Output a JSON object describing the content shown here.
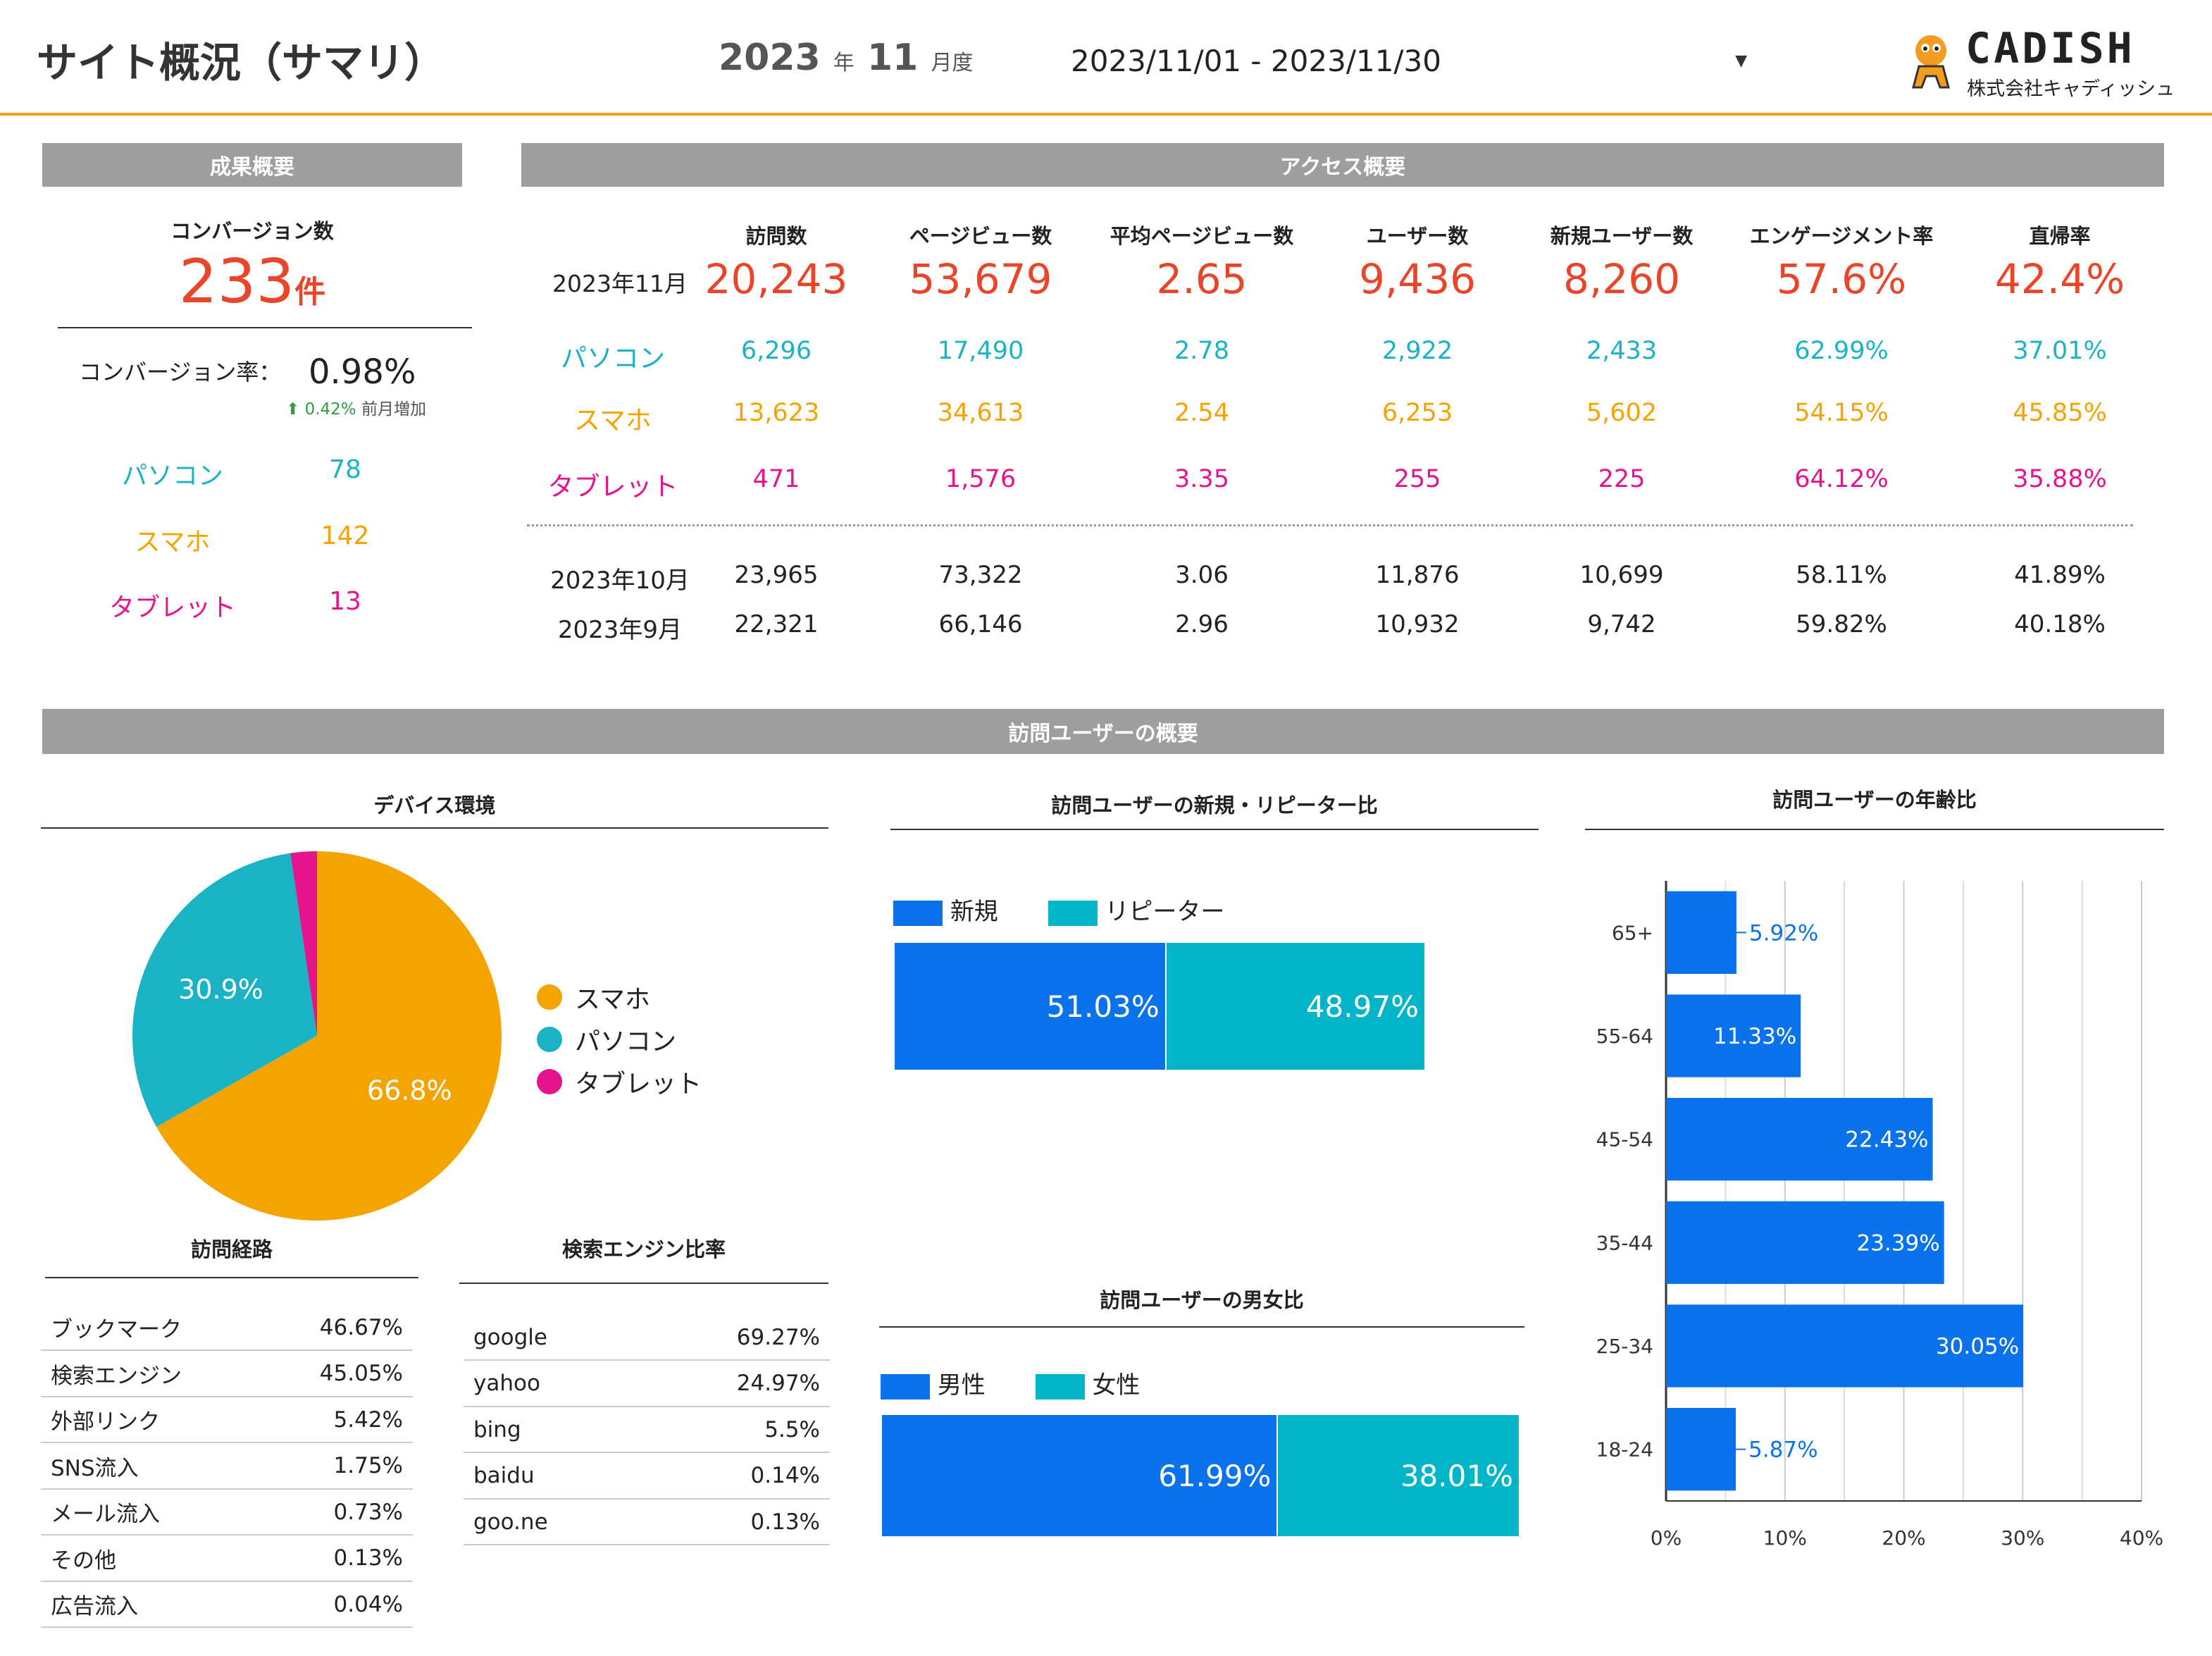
{
  "header": {
    "title": "サイト概況（サマリ）",
    "year": "2023",
    "year_unit": "年",
    "month": "11",
    "month_unit": "月度",
    "date_range": "2023/11/01 - 2023/11/30",
    "logo_name": "CADISH",
    "logo_company": "株式会社キャディッシュ"
  },
  "colors": {
    "accent": "#f39c1f",
    "red": "#e8462a",
    "pc": "#1ab3c6",
    "smartphone": "#f5a300",
    "tablet": "#e6148c",
    "blue": "#0a73eb",
    "teal": "#00b5c8"
  },
  "results": {
    "section_title": "成果概要",
    "cv_label": "コンバージョン数",
    "cv_value": "233",
    "cv_unit": "件",
    "cvr_label": "コンバージョン率：",
    "cvr_value": "0.98%",
    "cvr_change": "0.42%",
    "cvr_change_label": "前月増加",
    "devices": [
      {
        "label": "パソコン",
        "value": "78"
      },
      {
        "label": "スマホ",
        "value": "142"
      },
      {
        "label": "タブレット",
        "value": "13"
      }
    ]
  },
  "access": {
    "section_title": "アクセス概要",
    "columns": [
      "訪問数",
      "ページビュー数",
      "平均ページビュー数",
      "ユーザー数",
      "新規ユーザー数",
      "エンゲージメント率",
      "直帰率"
    ],
    "current": {
      "label": "2023年11月",
      "values": [
        "20,243",
        "53,679",
        "2.65",
        "9,436",
        "8,260",
        "57.6%",
        "42.4%"
      ]
    },
    "devices": [
      {
        "label": "パソコン",
        "values": [
          "6,296",
          "17,490",
          "2.78",
          "2,922",
          "2,433",
          "62.99%",
          "37.01%"
        ]
      },
      {
        "label": "スマホ",
        "values": [
          "13,623",
          "34,613",
          "2.54",
          "6,253",
          "5,602",
          "54.15%",
          "45.85%"
        ]
      },
      {
        "label": "タブレット",
        "values": [
          "471",
          "1,576",
          "3.35",
          "255",
          "225",
          "64.12%",
          "35.88%"
        ]
      }
    ],
    "previous": [
      {
        "label": "2023年10月",
        "values": [
          "23,965",
          "73,322",
          "3.06",
          "11,876",
          "10,699",
          "58.11%",
          "41.89%"
        ]
      },
      {
        "label": "2023年9月",
        "values": [
          "22,321",
          "66,146",
          "2.96",
          "10,932",
          "9,742",
          "59.82%",
          "40.18%"
        ]
      }
    ]
  },
  "visitors": {
    "section_title": "訪問ユーザーの概要",
    "device_title": "デバイス環境",
    "newrep_title": "訪問ユーザーの新規・リピーター比",
    "gender_title": "訪問ユーザーの男女比",
    "age_title": "訪問ユーザーの年齢比",
    "route_title": "訪問経路",
    "engine_title": "検索エンジン比率",
    "routes": [
      {
        "name": "ブックマーク",
        "value": "46.67%"
      },
      {
        "name": "検索エンジン",
        "value": "45.05%"
      },
      {
        "name": "外部リンク",
        "value": "5.42%"
      },
      {
        "name": "SNS流入",
        "value": "1.75%"
      },
      {
        "name": "メール流入",
        "value": "0.73%"
      },
      {
        "name": "その他",
        "value": "0.13%"
      },
      {
        "name": "広告流入",
        "value": "0.04%"
      }
    ],
    "engines": [
      {
        "name": "google",
        "value": "69.27%"
      },
      {
        "name": "yahoo",
        "value": "24.97%"
      },
      {
        "name": "bing",
        "value": "5.5%"
      },
      {
        "name": "baidu",
        "value": "0.14%"
      },
      {
        "name": "goo.ne",
        "value": "0.13%"
      }
    ]
  },
  "chart_data": [
    {
      "type": "pie",
      "title": "デバイス環境",
      "slices": [
        {
          "name": "スマホ",
          "value": 66.8,
          "label": "66.8%"
        },
        {
          "name": "パソコン",
          "value": 30.9,
          "label": "30.9%"
        },
        {
          "name": "タブレット",
          "value": 2.3,
          "label": ""
        }
      ]
    },
    {
      "type": "bar",
      "stacked": true,
      "title": "訪問ユーザーの新規・リピーター比",
      "series": [
        {
          "name": "新規",
          "values": [
            51.03
          ],
          "label": "51.03%"
        },
        {
          "name": "リピーター",
          "values": [
            48.97
          ],
          "label": "48.97%"
        }
      ]
    },
    {
      "type": "bar",
      "stacked": true,
      "title": "訪問ユーザーの男女比",
      "series": [
        {
          "name": "男性",
          "values": [
            61.99
          ],
          "label": "61.99%"
        },
        {
          "name": "女性",
          "values": [
            38.01
          ],
          "label": "38.01%"
        }
      ]
    },
    {
      "type": "bar",
      "orientation": "horizontal",
      "title": "訪問ユーザーの年齢比",
      "categories": [
        "65+",
        "55-64",
        "45-54",
        "35-44",
        "25-34",
        "18-24"
      ],
      "values": [
        5.92,
        11.33,
        22.43,
        23.39,
        30.05,
        5.87
      ],
      "labels": [
        "5.92%",
        "11.33%",
        "22.43%",
        "23.39%",
        "30.05%",
        "5.87%"
      ],
      "xlim": [
        0,
        40
      ],
      "xticks": [
        "0%",
        "10%",
        "20%",
        "30%",
        "40%"
      ],
      "grid": true
    }
  ]
}
